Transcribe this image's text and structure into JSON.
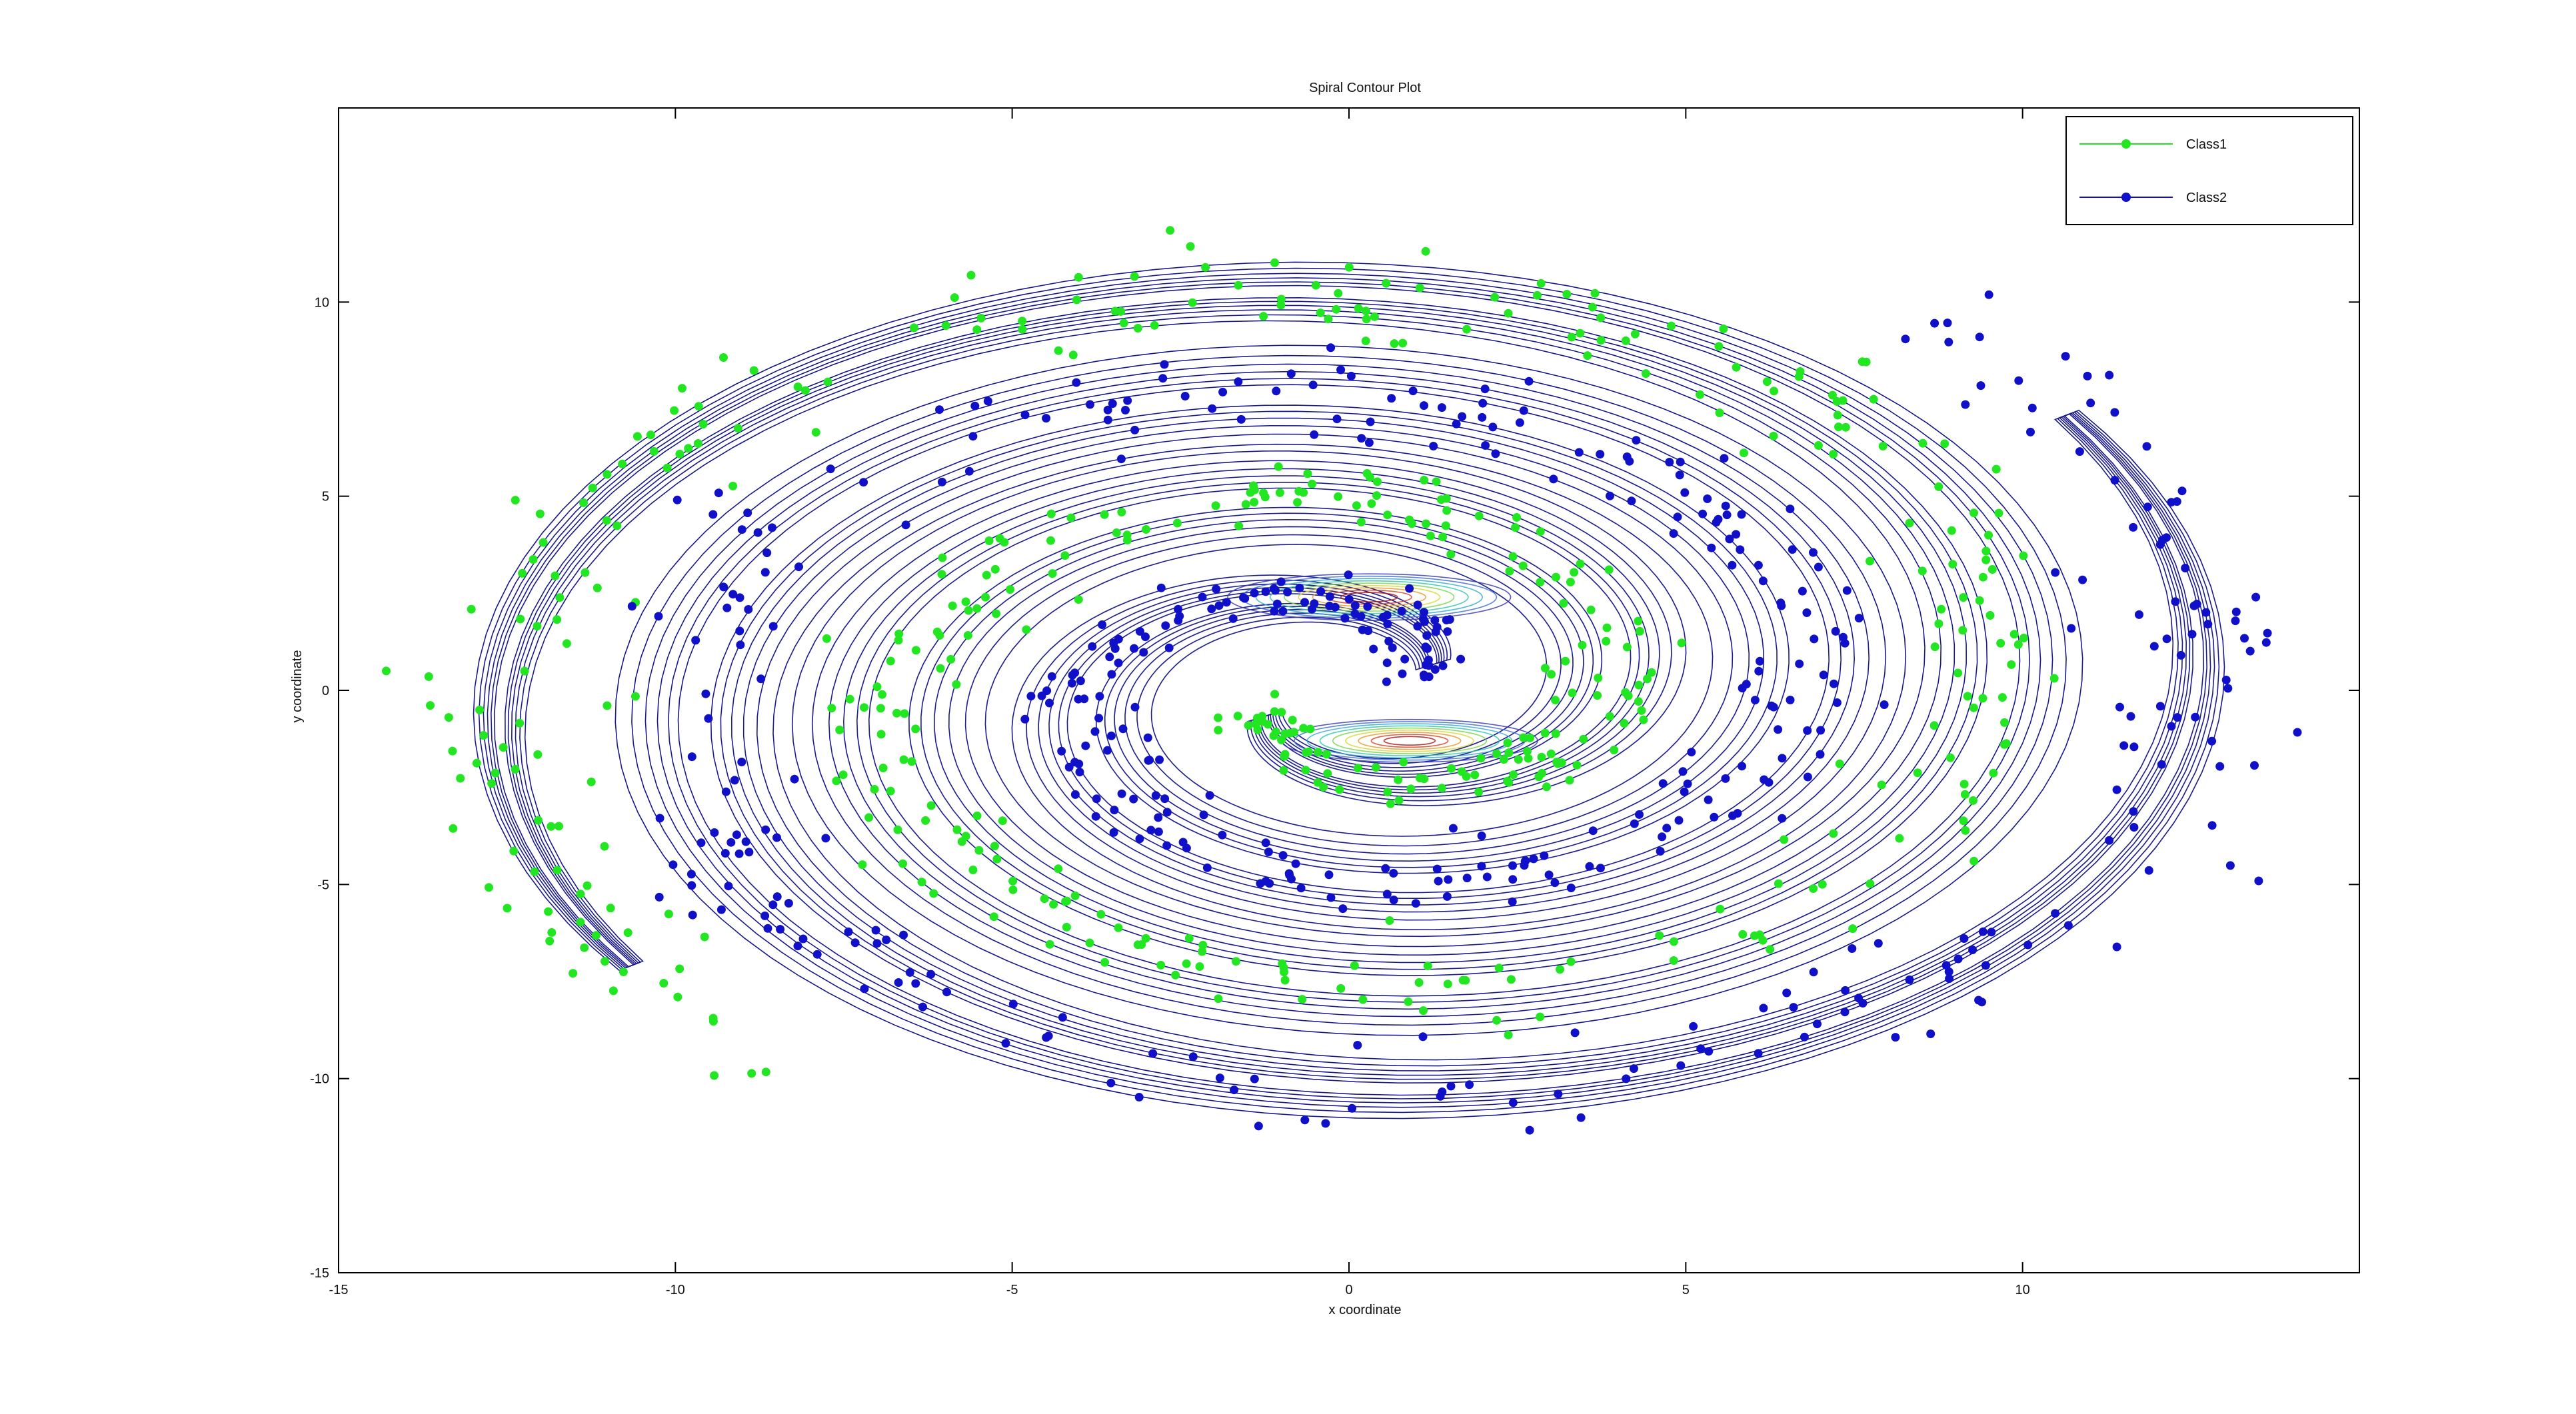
{
  "chart_data": {
    "type": "scatter",
    "title": "Spiral Contour Plot",
    "xlabel": "x coordinate",
    "ylabel": "y coordinate",
    "xlim": [
      -15,
      15
    ],
    "ylim": [
      -15,
      15
    ],
    "xticks": [
      -15,
      -10,
      -5,
      0,
      5,
      10
    ],
    "yticks": [
      -15,
      -10,
      -5,
      0,
      5,
      10
    ],
    "grid": false,
    "legend_position": "top-right",
    "contour_overlay": "density contours of the spiral point cloud",
    "series": [
      {
        "name": "Class1",
        "color": "#22e622",
        "arm": {
          "r0": 1.2,
          "r1": 13.4,
          "theta0_deg": 195,
          "turns": 2.1,
          "spread": 0.55
        },
        "n_points": 520
      },
      {
        "name": "Class2",
        "color": "#1010c8",
        "arm": {
          "r0": 1.2,
          "r1": 13.4,
          "theta0_deg": 15,
          "turns": 2.1,
          "spread": 0.55
        },
        "n_points": 520
      }
    ],
    "contour_color": "#1a1a8c"
  }
}
